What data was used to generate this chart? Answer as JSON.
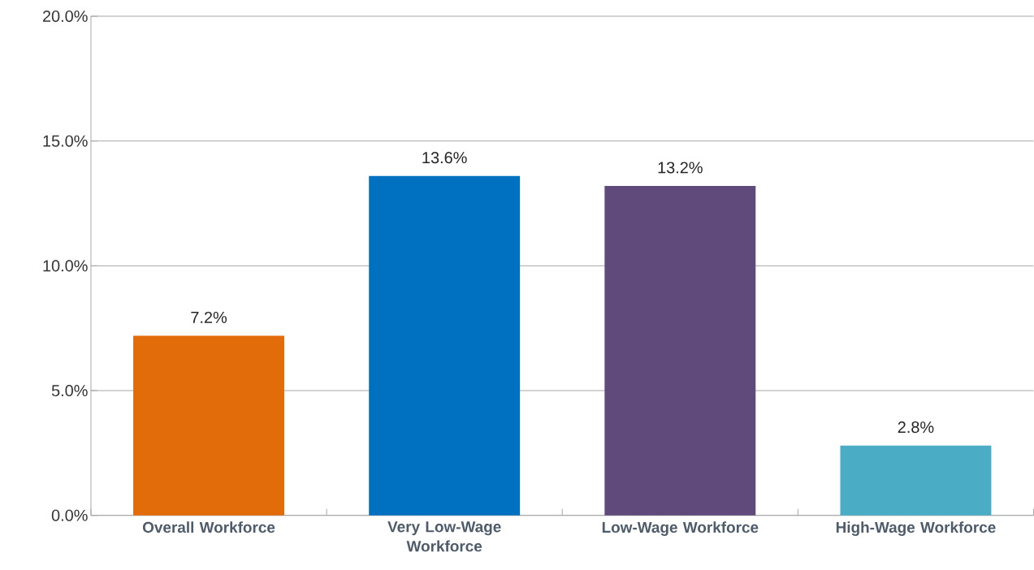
{
  "chart_data": {
    "type": "bar",
    "categories": [
      "Overall Workforce",
      "Very Low-Wage Workforce",
      "Low-Wage Workforce",
      "High-Wage Workforce"
    ],
    "values": [
      7.2,
      13.6,
      13.2,
      2.8
    ],
    "colors": [
      "#e36c0a",
      "#0070c0",
      "#604a7b",
      "#4bacc6"
    ],
    "value_labels": [
      "7.2%",
      "13.6%",
      "13.2%",
      "2.8%"
    ],
    "ylim": [
      0,
      20
    ],
    "yticks": [
      {
        "value": 0,
        "label": "0.0%"
      },
      {
        "value": 5,
        "label": "5.0%"
      },
      {
        "value": 10,
        "label": "10.0%"
      },
      {
        "value": 15,
        "label": "15.0%"
      },
      {
        "value": 20,
        "label": "20.0%"
      }
    ],
    "grid": "y"
  }
}
